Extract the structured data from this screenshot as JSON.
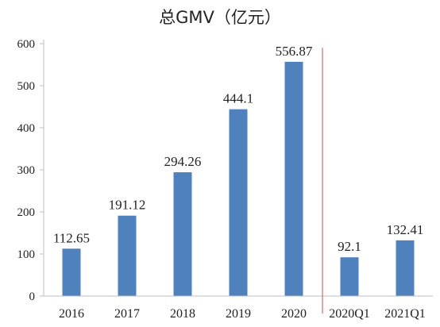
{
  "chart_data": {
    "type": "bar",
    "title": "总GMV（亿元）",
    "xlabel": "",
    "ylabel": "",
    "categories": [
      "2016",
      "2017",
      "2018",
      "2019",
      "2020",
      "2020Q1",
      "2021Q1"
    ],
    "values": [
      112.65,
      191.12,
      294.26,
      444.1,
      556.87,
      92.1,
      132.41
    ],
    "data_labels": [
      "112.65",
      "191.12",
      "294.26",
      "444.1",
      "556.87",
      "92.1",
      "132.41"
    ],
    "ylim": [
      0,
      600
    ],
    "yticks": [
      0,
      100,
      200,
      300,
      400,
      500,
      600
    ],
    "bar_color": "#4f81bd",
    "divider_color": "#c0504d",
    "grid": false,
    "legend": "none"
  }
}
